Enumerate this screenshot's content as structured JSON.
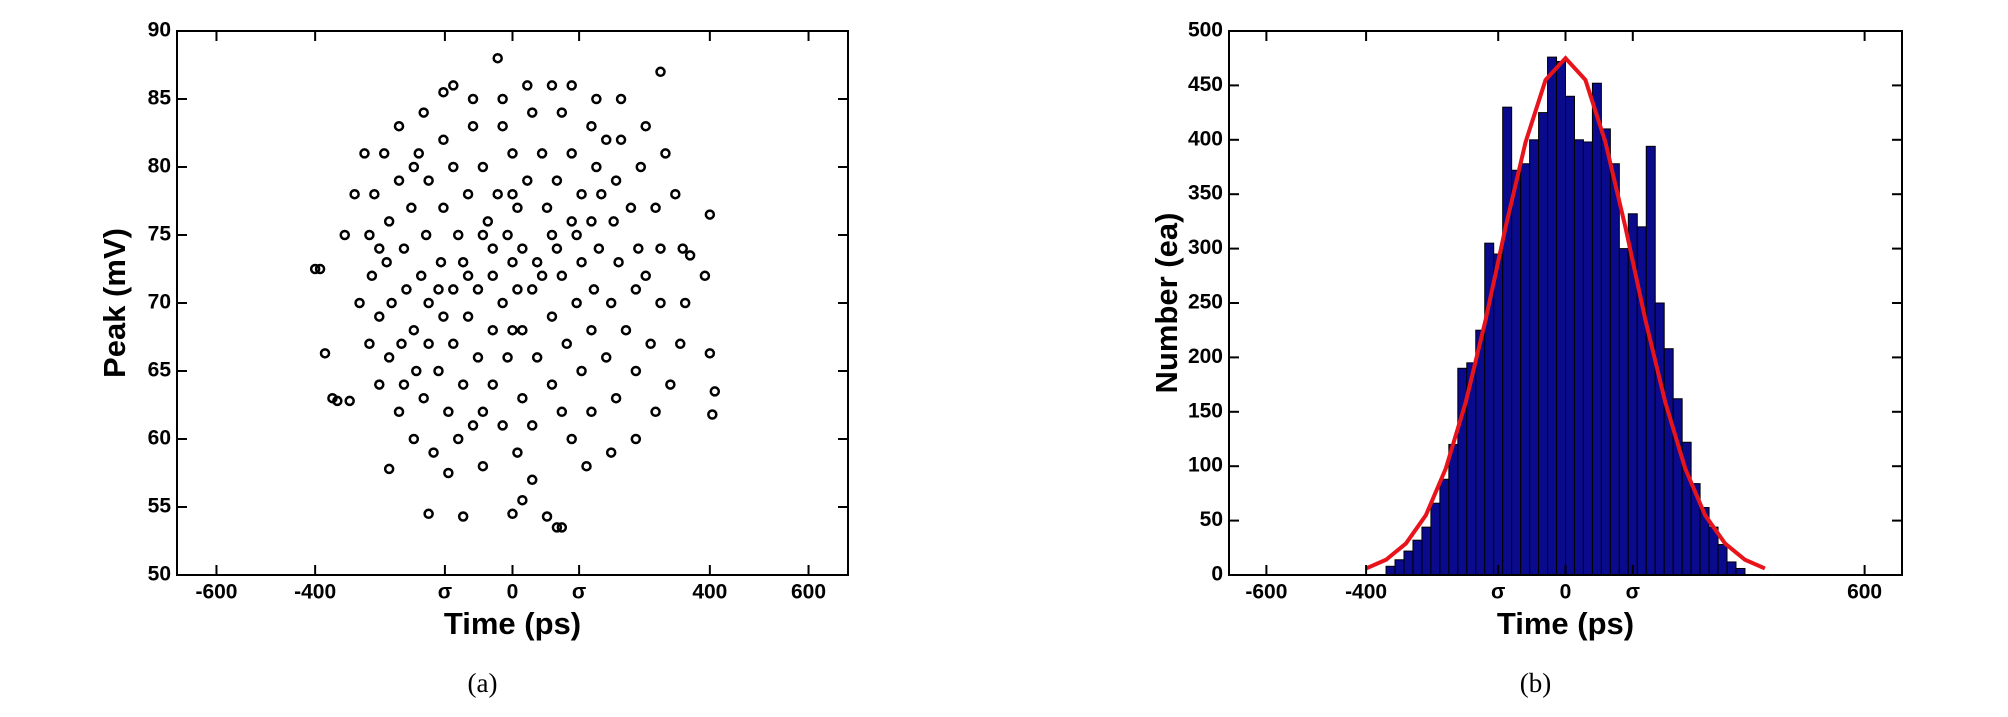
{
  "chart_data": [
    {
      "type": "scatter",
      "panel_label": "(a)",
      "x_label": "Time (ps)",
      "y_label": "Peak (mV)",
      "color": "#000000",
      "xlim": [
        -680,
        680
      ],
      "ylim": [
        50,
        90
      ],
      "xticks": [
        -600,
        -400,
        {
          "value": -137,
          "label": "σ"
        },
        0,
        {
          "value": 135,
          "label": "σ"
        },
        400,
        600
      ],
      "yticks": [
        50,
        55,
        60,
        65,
        70,
        75,
        80,
        85,
        90
      ],
      "x": [
        -400,
        -390,
        -365,
        -355,
        -380,
        -330,
        -250,
        -170,
        -130,
        -100,
        0,
        20,
        70,
        90,
        100,
        400,
        410,
        405,
        400,
        390,
        360,
        -30,
        120,
        300,
        -120,
        -140,
        -300,
        -320,
        -340,
        -310,
        -290,
        -270,
        -230,
        -200,
        -160,
        -60,
        40,
        150,
        200,
        250,
        290,
        320,
        340,
        350,
        345,
        330,
        310,
        270,
        220,
        170,
        80,
        30,
        -20,
        -80,
        -180,
        -230,
        -260,
        -280,
        -290,
        -285,
        -270,
        -250,
        -220,
        -180,
        -130,
        -80,
        -20,
        40,
        100,
        160,
        210,
        250,
        280,
        300,
        300,
        290,
        260,
        220,
        160,
        100,
        40,
        -20,
        -80,
        -140,
        -190,
        -230,
        -250,
        -255,
        -245,
        -225,
        -195,
        -150,
        -100,
        -40,
        20,
        80,
        140,
        190,
        230,
        250,
        255,
        240,
        210,
        170,
        120,
        60,
        0,
        -60,
        -120,
        -170,
        -205,
        -220,
        -215,
        -200,
        -170,
        -120,
        -70,
        -10,
        50,
        110,
        160,
        200,
        215,
        205,
        180,
        140,
        90,
        30,
        -30,
        -90,
        -140,
        -175,
        -185,
        -170,
        -140,
        -90,
        -40,
        20,
        80,
        130,
        165,
        175,
        160,
        120,
        70,
        10,
        -50,
        -110,
        -145,
        -150,
        -120,
        -70,
        -20,
        40,
        100,
        140,
        130,
        80,
        20,
        -40,
        -100,
        -90,
        -40,
        0,
        50,
        90,
        60,
        10,
        -60,
        -10,
        -60,
        10,
        -200,
        190,
        -110,
        120,
        -270,
        270,
        0,
        0
      ],
      "values": [
        72.5,
        72.5,
        63,
        62.8,
        66.3,
        62.8,
        57.8,
        54.5,
        57.5,
        54.3,
        54.5,
        55.5,
        54.3,
        53.5,
        53.5,
        66.3,
        63.5,
        61.8,
        76.5,
        72,
        73.5,
        88,
        86,
        87,
        86,
        85.5,
        81,
        78,
        75,
        70,
        67,
        64,
        62,
        60,
        59,
        58,
        57,
        58,
        59,
        60,
        62,
        64,
        67,
        70,
        74,
        78,
        81,
        83,
        85,
        85,
        86,
        86,
        85,
        85,
        84,
        83,
        81,
        78,
        75,
        72,
        69,
        66,
        64,
        63,
        62,
        61,
        61,
        61,
        62,
        62,
        63,
        65,
        67,
        70,
        74,
        77,
        80,
        82,
        83,
        84,
        84,
        83,
        83,
        82,
        81,
        79,
        76,
        73,
        70,
        67,
        65,
        65,
        64,
        64,
        63,
        64,
        65,
        66,
        68,
        71,
        74,
        77,
        79,
        80,
        81,
        81,
        81,
        80,
        80,
        79,
        77,
        74,
        71,
        68,
        67,
        67,
        66,
        66,
        66,
        67,
        68,
        70,
        73,
        76,
        78,
        78,
        79,
        79,
        78,
        78,
        77,
        75,
        72,
        70,
        69,
        69,
        68,
        68,
        69,
        70,
        71,
        74,
        76,
        76,
        77,
        77,
        76,
        75,
        73,
        71,
        71,
        71,
        70,
        71,
        72,
        73,
        75,
        75,
        74,
        74,
        73,
        72,
        72,
        73,
        73,
        74,
        72,
        71,
        75,
        75,
        62,
        59,
        80,
        82,
        60,
        60,
        74,
        72,
        68,
        78
      ]
    },
    {
      "type": "histogram",
      "panel_label": "(b)",
      "x_label": "Time (ps)",
      "y_label": "Number (ea)",
      "color": "#0a0a8c",
      "xlim": [
        -675,
        675
      ],
      "ylim": [
        0,
        500
      ],
      "xticks": [
        -600,
        -400,
        {
          "value": -135,
          "label": "σ"
        },
        0,
        {
          "value": 135,
          "label": "σ"
        },
        600
      ],
      "yticks": [
        0,
        50,
        100,
        150,
        200,
        250,
        300,
        350,
        400,
        450,
        500
      ],
      "bins": [
        -360,
        -342,
        -324,
        -306,
        -288,
        -270,
        -252,
        -234,
        -216,
        -198,
        -180,
        -162,
        -144,
        -126,
        -108,
        -90,
        -72,
        -54,
        -36,
        -18,
        0,
        18,
        36,
        54,
        72,
        90,
        108,
        126,
        144,
        162,
        180,
        198,
        216,
        234,
        252,
        270,
        288,
        306,
        324,
        342,
        360
      ],
      "values": [
        8,
        14,
        22,
        32,
        44,
        66,
        88,
        120,
        190,
        195,
        225,
        305,
        295,
        430,
        372,
        378,
        400,
        425,
        476,
        472,
        440,
        400,
        398,
        452,
        410,
        378,
        300,
        332,
        320,
        394,
        250,
        208,
        162,
        122,
        84,
        62,
        44,
        28,
        12,
        6
      ],
      "fit": {
        "color": "#e8141c",
        "x": [
          -400,
          -360,
          -320,
          -280,
          -240,
          -200,
          -160,
          -120,
          -80,
          -40,
          0,
          40,
          80,
          120,
          160,
          200,
          240,
          280,
          320,
          360,
          400
        ],
        "values": [
          6,
          14,
          29,
          55,
          98,
          159,
          235,
          320,
          398,
          455,
          475,
          455,
          398,
          320,
          235,
          159,
          98,
          55,
          29,
          14,
          6
        ]
      }
    }
  ]
}
